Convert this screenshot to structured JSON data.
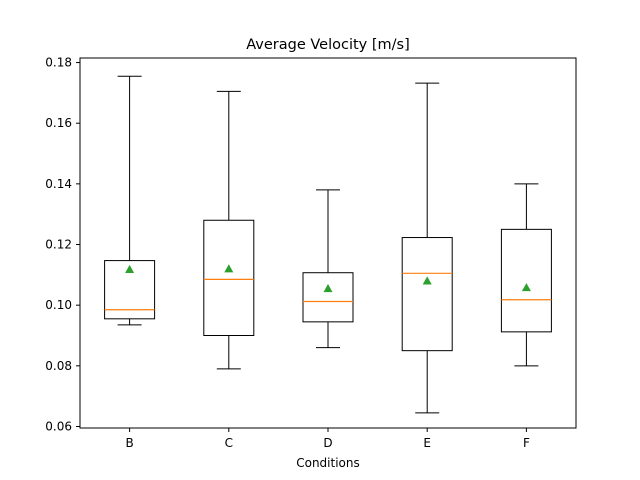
{
  "chart_data": {
    "type": "box",
    "title": "Average Velocity [m/s]",
    "xlabel": "Conditions",
    "ylabel": "",
    "ylim": [
      0.0595,
      0.1815
    ],
    "yticks": [
      0.06,
      0.08,
      0.1,
      0.12,
      0.14,
      0.16,
      0.18
    ],
    "ytick_labels": [
      "0.06",
      "0.08",
      "0.10",
      "0.12",
      "0.14",
      "0.16",
      "0.18"
    ],
    "categories": [
      "B",
      "C",
      "D",
      "E",
      "F"
    ],
    "boxes": [
      {
        "name": "B",
        "whisker_low": 0.0935,
        "q1": 0.0955,
        "median": 0.0985,
        "q3": 0.1147,
        "whisker_high": 0.1755,
        "mean": 0.1118
      },
      {
        "name": "C",
        "whisker_low": 0.079,
        "q1": 0.09,
        "median": 0.1085,
        "q3": 0.128,
        "whisker_high": 0.1705,
        "mean": 0.112
      },
      {
        "name": "D",
        "whisker_low": 0.086,
        "q1": 0.0945,
        "median": 0.1012,
        "q3": 0.1107,
        "whisker_high": 0.138,
        "mean": 0.1055
      },
      {
        "name": "E",
        "whisker_low": 0.0645,
        "q1": 0.085,
        "median": 0.1105,
        "q3": 0.1223,
        "whisker_high": 0.1732,
        "mean": 0.108
      },
      {
        "name": "F",
        "whisker_low": 0.08,
        "q1": 0.0912,
        "median": 0.1018,
        "q3": 0.125,
        "whisker_high": 0.14,
        "mean": 0.1058
      }
    ],
    "colors": {
      "box": "#000000",
      "median": "#ff7f0e",
      "mean": "#2ca02c"
    },
    "grid": false,
    "legend": "none"
  }
}
